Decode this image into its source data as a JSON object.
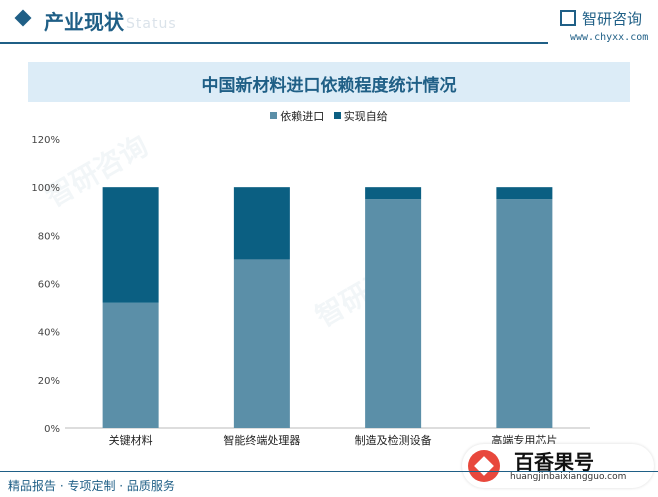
{
  "header": {
    "section_title": "产业现状",
    "ghost_word": "Status",
    "brand_name": "智研咨询",
    "brand_url": "www.chyxx.com"
  },
  "colors": {
    "import": "#5b8fa8",
    "self_supply": "#0b5f82",
    "brand": "#1f5f86",
    "title_band": "#dcecf7"
  },
  "chart_data": {
    "type": "bar",
    "stacked": true,
    "title": "中国新材料进口依赖程度统计情况",
    "categories": [
      "关键材料",
      "智能终端处理器",
      "制造及检测设备",
      "高端专用芯片"
    ],
    "series": [
      {
        "name": "依赖进口",
        "values": [
          52,
          70,
          95,
          95
        ]
      },
      {
        "name": "实现自给",
        "values": [
          48,
          30,
          5,
          5
        ]
      }
    ],
    "ylim": [
      0,
      120
    ],
    "yticks": [
      "0%",
      "20%",
      "40%",
      "60%",
      "80%",
      "100%",
      "120%"
    ],
    "grid": false,
    "legend_position": "top"
  },
  "footer": {
    "tagline": "精品报告 · 专项定制 · 品质服务"
  },
  "badge": {
    "name": "百香果号",
    "url": "huangjinbaixiangguo.com"
  }
}
